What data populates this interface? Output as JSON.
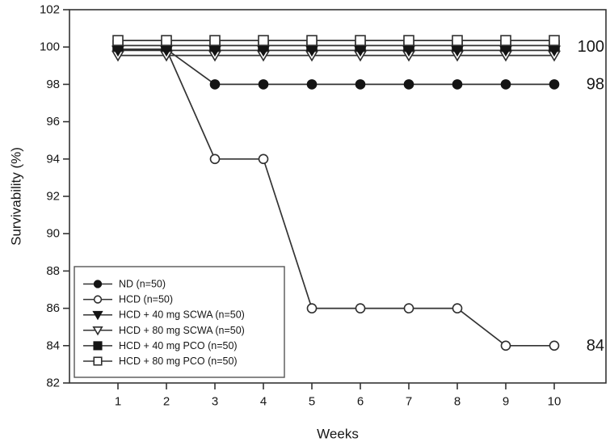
{
  "chart_data": {
    "type": "line",
    "title": "",
    "xlabel": "Weeks",
    "ylabel": "Survivability (%)",
    "x": [
      1,
      2,
      3,
      4,
      5,
      6,
      7,
      8,
      9,
      10
    ],
    "xticks": [
      "1",
      "2",
      "3",
      "4",
      "5",
      "6",
      "7",
      "8",
      "9",
      "10"
    ],
    "ylim": [
      82,
      102
    ],
    "yticks": [
      "82",
      "84",
      "86",
      "88",
      "90",
      "92",
      "94",
      "96",
      "98",
      "100",
      "102"
    ],
    "grid": false,
    "legend_position": "bottom-left",
    "series": [
      {
        "name": "ND (n=50)",
        "marker": "circle-filled",
        "values": [
          100,
          100,
          98,
          98,
          98,
          98,
          98,
          98,
          98,
          98
        ]
      },
      {
        "name": "HCD (n=50)",
        "marker": "circle-open",
        "values": [
          100,
          100,
          94,
          94,
          86,
          86,
          86,
          86,
          84,
          84
        ]
      },
      {
        "name": "HCD + 40 mg SCWA (n=50)",
        "marker": "triangle-down-filled",
        "values": [
          100,
          100,
          100,
          100,
          100,
          100,
          100,
          100,
          100,
          100
        ]
      },
      {
        "name": "HCD + 80 mg SCWA (n=50)",
        "marker": "triangle-down-open",
        "values": [
          100,
          100,
          100,
          100,
          100,
          100,
          100,
          100,
          100,
          100
        ]
      },
      {
        "name": "HCD + 40 mg PCO (n=50)",
        "marker": "square-filled",
        "values": [
          100,
          100,
          100,
          100,
          100,
          100,
          100,
          100,
          100,
          100
        ]
      },
      {
        "name": "HCD + 80 mg PCO (n=50)",
        "marker": "square-open",
        "values": [
          100,
          100,
          100,
          100,
          100,
          100,
          100,
          100,
          100,
          100
        ]
      }
    ],
    "annotations": [
      {
        "label": "100",
        "value": 100
      },
      {
        "label": "98",
        "value": 98
      },
      {
        "label": "84",
        "value": 84
      }
    ],
    "colors": {
      "line": "#333333",
      "marker_fill": "#141414",
      "marker_open_fill": "#ffffff",
      "text": "#161616",
      "frame": "#333333",
      "background": "#ffffff"
    }
  }
}
